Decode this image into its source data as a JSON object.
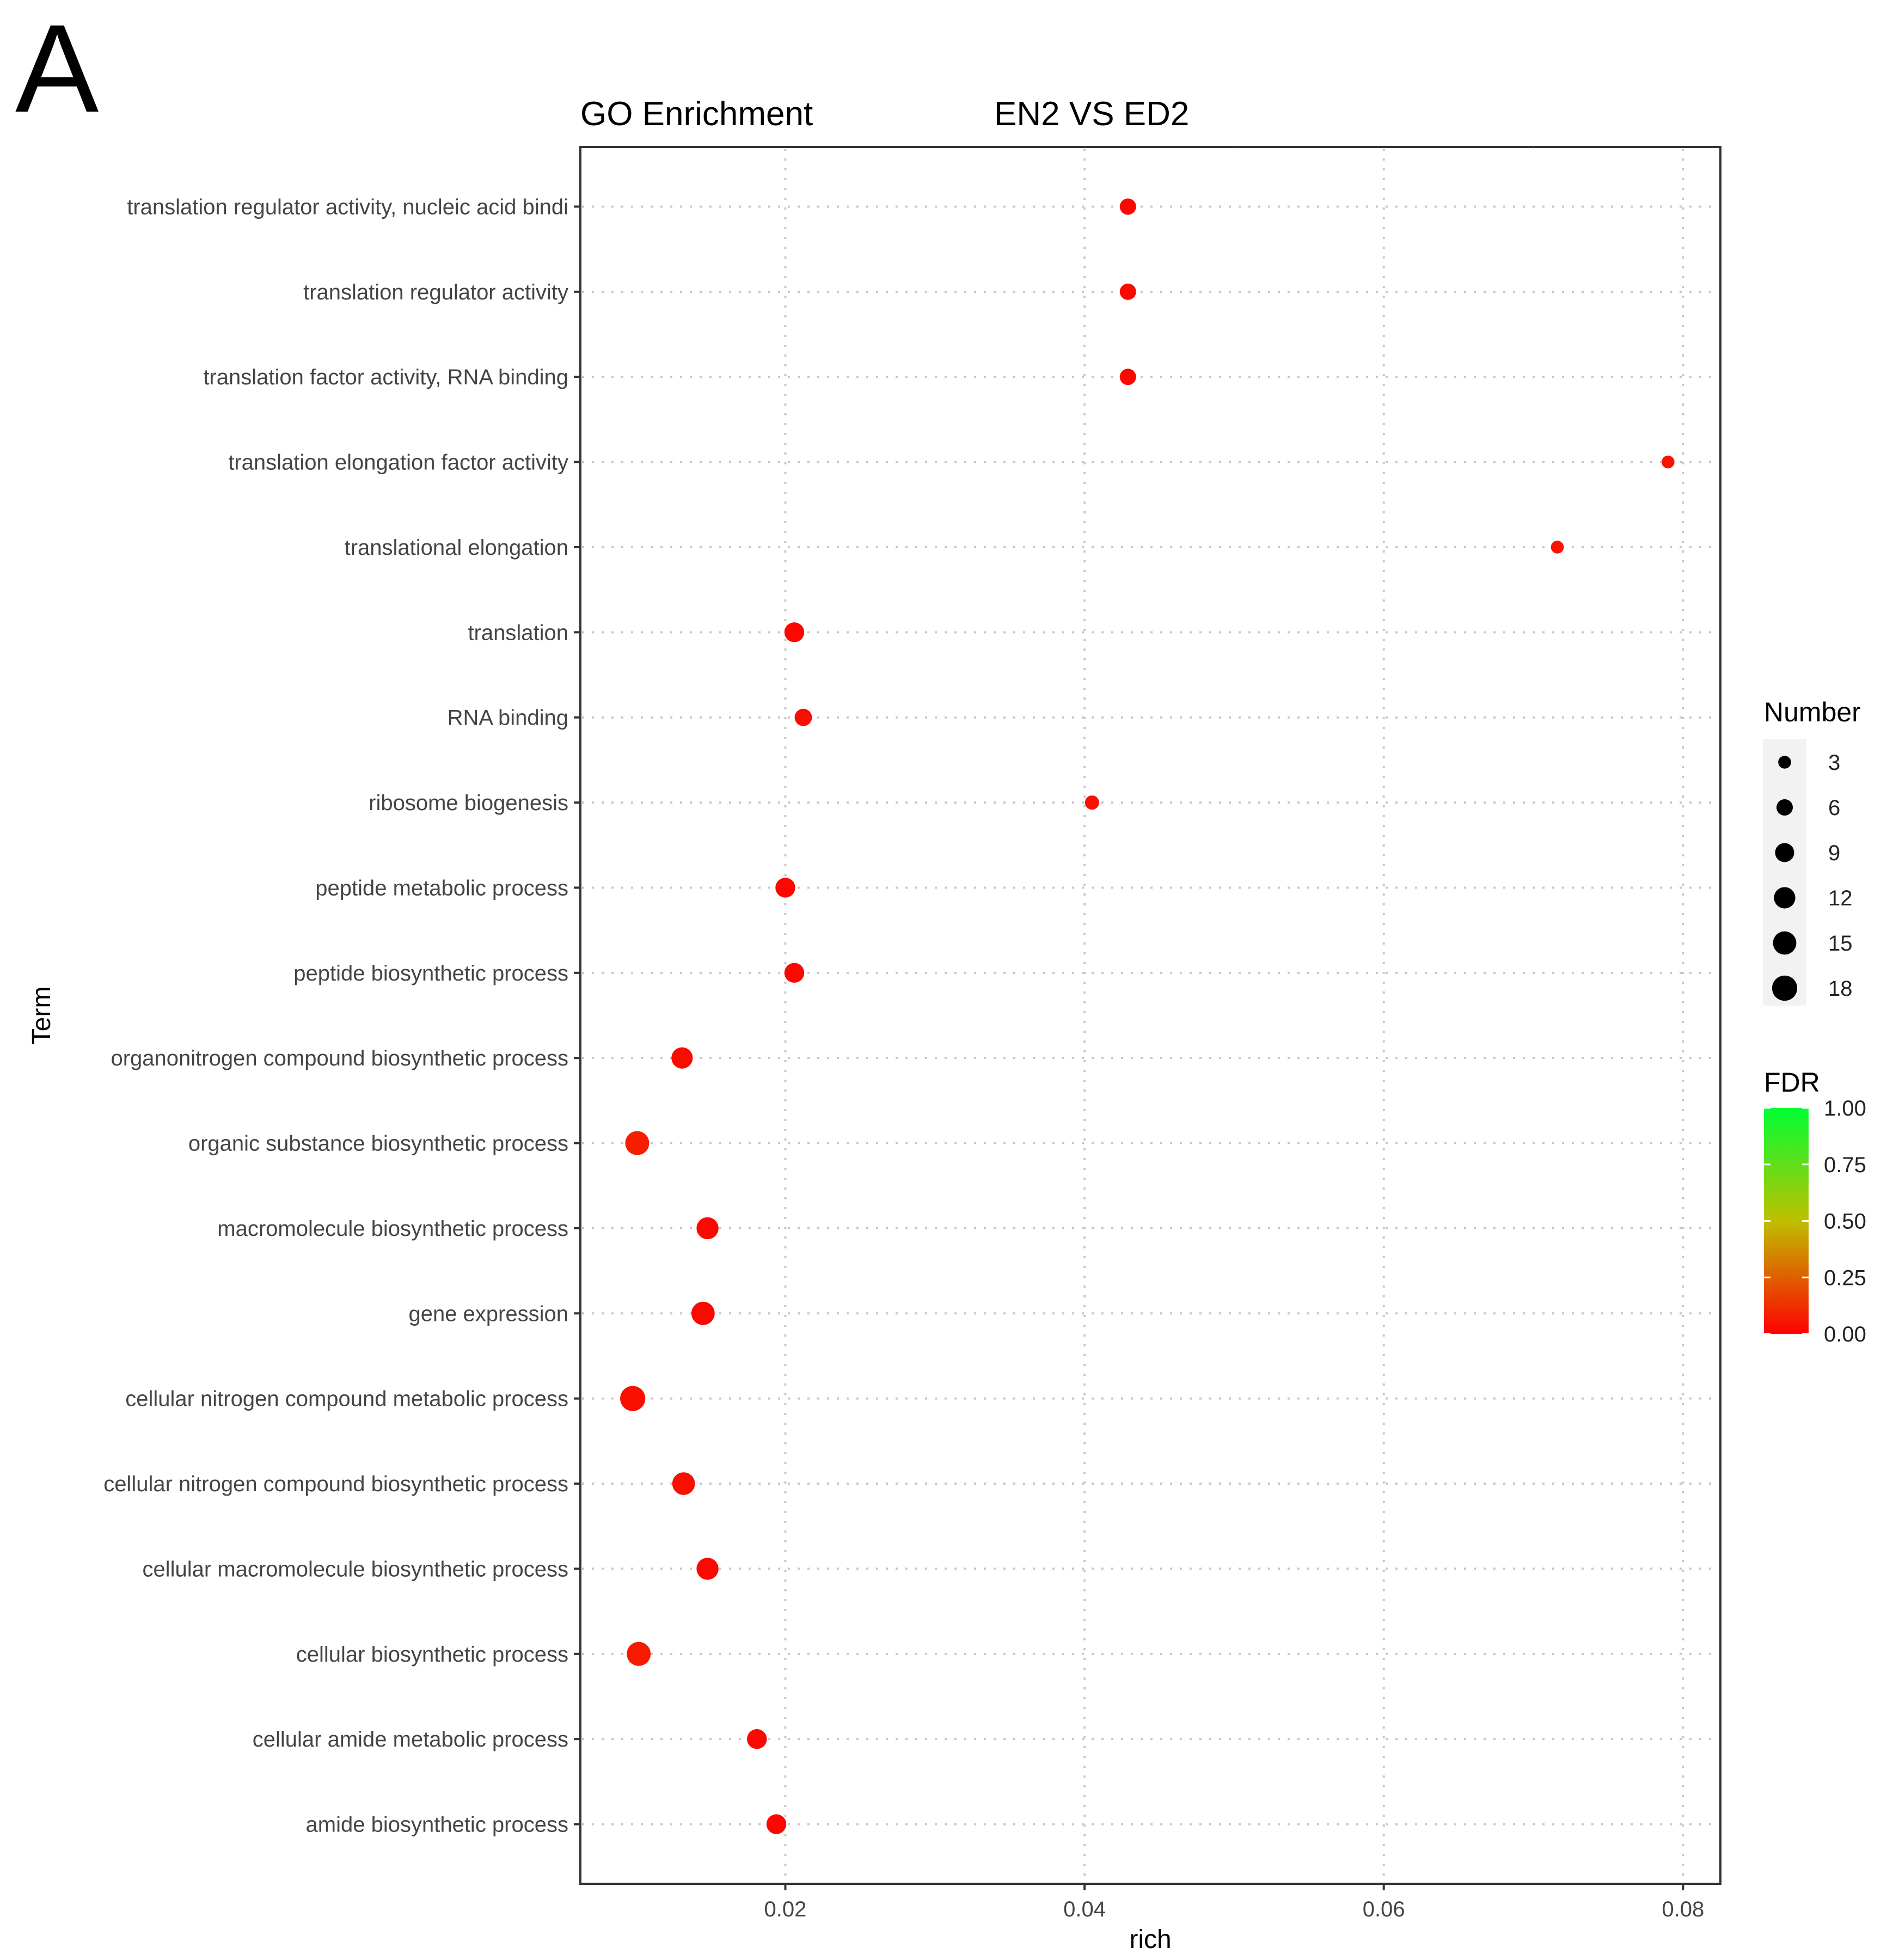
{
  "panel_label": "A",
  "chart_data": {
    "type": "scatter",
    "title_left": "GO Enrichment",
    "title_right": "EN2 VS ED2",
    "xlabel": "rich",
    "ylabel": "Term",
    "xlim": [
      0.0063,
      0.0825
    ],
    "xticks": [
      0.02,
      0.04,
      0.06,
      0.08
    ],
    "xtick_labels": [
      "0.02",
      "0.04",
      "0.06",
      "0.08"
    ],
    "grid": true,
    "terms": [
      "translation regulator activity, nucleic acid bindi",
      "translation regulator activity",
      "translation factor activity, RNA binding",
      "translation elongation factor activity",
      "translational elongation",
      "translation",
      "RNA binding",
      "ribosome biogenesis",
      "peptide metabolic process",
      "peptide biosynthetic process",
      "organonitrogen compound biosynthetic process",
      "organic substance biosynthetic process",
      "macromolecule biosynthetic process",
      "gene expression",
      "cellular nitrogen compound metabolic process",
      "cellular nitrogen compound biosynthetic process",
      "cellular macromolecule biosynthetic process",
      "cellular biosynthetic process",
      "cellular amide metabolic process",
      "amide biosynthetic process"
    ],
    "points": [
      {
        "term": "translation regulator activity, nucleic acid bindi",
        "rich": 0.0429,
        "number": 6,
        "fdr": 0.02
      },
      {
        "term": "translation regulator activity",
        "rich": 0.0429,
        "number": 6,
        "fdr": 0.02
      },
      {
        "term": "translation factor activity, RNA binding",
        "rich": 0.0429,
        "number": 6,
        "fdr": 0.02
      },
      {
        "term": "translation elongation factor activity",
        "rich": 0.079,
        "number": 3,
        "fdr": 0.05
      },
      {
        "term": "translational elongation",
        "rich": 0.0716,
        "number": 3,
        "fdr": 0.05
      },
      {
        "term": "translation",
        "rich": 0.0206,
        "number": 10,
        "fdr": 0.02
      },
      {
        "term": "RNA binding",
        "rich": 0.0212,
        "number": 7,
        "fdr": 0.03
      },
      {
        "term": "ribosome biogenesis",
        "rich": 0.0405,
        "number": 4,
        "fdr": 0.04
      },
      {
        "term": "peptide metabolic process",
        "rich": 0.02,
        "number": 10,
        "fdr": 0.02
      },
      {
        "term": "peptide biosynthetic process",
        "rich": 0.0206,
        "number": 10,
        "fdr": 0.02
      },
      {
        "term": "organonitrogen compound biosynthetic process",
        "rich": 0.0131,
        "number": 12,
        "fdr": 0.03
      },
      {
        "term": "organic substance biosynthetic process",
        "rich": 0.0101,
        "number": 16,
        "fdr": 0.08
      },
      {
        "term": "macromolecule biosynthetic process",
        "rich": 0.0148,
        "number": 13,
        "fdr": 0.02
      },
      {
        "term": "gene expression",
        "rich": 0.0145,
        "number": 15,
        "fdr": 0.02
      },
      {
        "term": "cellular nitrogen compound metabolic process",
        "rich": 0.0098,
        "number": 18,
        "fdr": 0.04
      },
      {
        "term": "cellular nitrogen compound biosynthetic process",
        "rich": 0.0132,
        "number": 14,
        "fdr": 0.04
      },
      {
        "term": "cellular macromolecule biosynthetic process",
        "rich": 0.0148,
        "number": 13,
        "fdr": 0.02
      },
      {
        "term": "cellular biosynthetic process",
        "rich": 0.0102,
        "number": 16,
        "fdr": 0.07
      },
      {
        "term": "cellular amide metabolic process",
        "rich": 0.0181,
        "number": 10,
        "fdr": 0.02
      },
      {
        "term": "amide biosynthetic process",
        "rich": 0.0194,
        "number": 10,
        "fdr": 0.02
      }
    ],
    "size_legend": {
      "title": "Number",
      "values": [
        3,
        6,
        9,
        12,
        15,
        18
      ],
      "labels": [
        "3",
        "6",
        "9",
        "12",
        "15",
        "18"
      ]
    },
    "color_legend": {
      "title": "FDR",
      "low_color": "#ff0000",
      "mid_color": "#bfbf00",
      "high_color": "#00ff33",
      "ticks": [
        1.0,
        0.75,
        0.5,
        0.25,
        0.0
      ],
      "tick_labels": [
        "1.00",
        "0.75",
        "0.50",
        "0.25",
        "0.00"
      ]
    }
  }
}
